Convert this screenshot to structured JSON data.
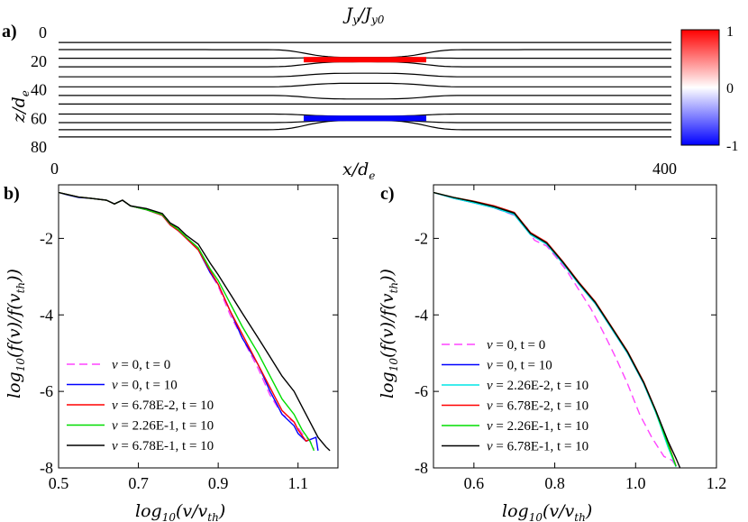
{
  "chart_data": [
    {
      "id": "a",
      "panel_label": "a)",
      "type": "heatmap",
      "title": "J_y/J_y0",
      "title_display": [
        "J",
        "y",
        "/J",
        "y0"
      ],
      "xlabel_display": [
        "x/d",
        "e"
      ],
      "ylabel_display": [
        "z/d",
        "e"
      ],
      "xlim": [
        0,
        400
      ],
      "ylim": [
        0,
        80
      ],
      "y_reversed": true,
      "x_ticks": [
        "0",
        "400"
      ],
      "y_ticks": [
        "0",
        "20",
        "40",
        "60",
        "80"
      ],
      "colorbar": {
        "range": [
          -1,
          1
        ],
        "ticks": [
          "1",
          "0",
          "-1"
        ],
        "colors": [
          "#ff0000",
          "#ffffff",
          "#0000ff"
        ]
      },
      "current_sheets": [
        {
          "sign": 1,
          "z": 19,
          "x_start": 160,
          "x_end": 240
        },
        {
          "sign": -1,
          "z": 60,
          "x_start": 160,
          "x_end": 240
        }
      ],
      "field_lines_z": [
        7,
        12,
        18,
        24,
        31,
        38,
        44,
        50,
        57,
        63,
        68,
        73
      ],
      "field_line_bend_center": 200
    },
    {
      "id": "b",
      "panel_label": "b)",
      "type": "line",
      "xlabel_display": [
        "log",
        "10",
        "(v/v",
        "th",
        ")"
      ],
      "ylabel_display": [
        "log",
        "10",
        "(f(v)/f(v",
        "th",
        "))"
      ],
      "xlim": [
        0.5,
        1.2
      ],
      "ylim": [
        -8,
        -0.6
      ],
      "x_ticks": [
        0.5,
        0.7,
        0.9,
        1.1
      ],
      "x_tick_labels": [
        "0.5",
        "0.7",
        "0.9",
        "1.1"
      ],
      "y_ticks": [
        -8,
        -6,
        -4,
        -2
      ],
      "y_tick_labels": [
        "-8",
        "-6",
        "-4",
        "-2"
      ],
      "legend": {
        "position": "bottom-left",
        "entries": [
          {
            "nu": "0",
            "t": "0",
            "color": "#ff44ff",
            "dashed": true
          },
          {
            "nu": "0",
            "t": "10",
            "color": "#0000ff",
            "dashed": false
          },
          {
            "nu": "6.78E-2",
            "t": "10",
            "color": "#ff0000",
            "dashed": false
          },
          {
            "nu": "2.26E-1",
            "t": "10",
            "color": "#00dd00",
            "dashed": false
          },
          {
            "nu": "6.78E-1",
            "t": "10",
            "color": "#000000",
            "dashed": false
          }
        ]
      },
      "series": [
        {
          "name": "nu=0, t=0",
          "color": "#ff44ff",
          "dashed": true,
          "x": [
            0.5,
            0.52,
            0.55,
            0.58,
            0.62,
            0.64,
            0.66,
            0.68,
            0.72,
            0.76,
            0.78,
            0.8,
            0.82,
            0.85,
            0.88,
            0.9,
            0.93,
            0.96,
            1.0,
            1.03,
            1.06,
            1.09,
            1.11,
            1.13,
            1.14
          ],
          "y": [
            -0.8,
            -0.85,
            -0.92,
            -0.95,
            -1.0,
            -1.1,
            -1.0,
            -1.15,
            -1.25,
            -1.4,
            -1.65,
            -1.8,
            -2.0,
            -2.3,
            -2.9,
            -3.25,
            -4.0,
            -4.6,
            -5.4,
            -6.1,
            -6.6,
            -6.8,
            -7.1,
            -7.3,
            -7.5
          ]
        },
        {
          "name": "nu=0, t=10",
          "color": "#0000ff",
          "dashed": false,
          "x": [
            0.5,
            0.52,
            0.55,
            0.58,
            0.62,
            0.64,
            0.66,
            0.68,
            0.72,
            0.76,
            0.78,
            0.8,
            0.82,
            0.85,
            0.88,
            0.9,
            0.93,
            0.96,
            1.0,
            1.03,
            1.06,
            1.09,
            1.1,
            1.12,
            1.145,
            1.15
          ],
          "y": [
            -0.8,
            -0.86,
            -0.93,
            -0.95,
            -1.0,
            -1.1,
            -1.0,
            -1.15,
            -1.25,
            -1.4,
            -1.65,
            -1.8,
            -2.0,
            -2.3,
            -2.9,
            -3.2,
            -3.9,
            -4.6,
            -5.3,
            -6.0,
            -6.6,
            -6.9,
            -7.1,
            -7.3,
            -7.2,
            -7.55
          ]
        },
        {
          "name": "nu=6.78E-2, t=10",
          "color": "#ff0000",
          "dashed": false,
          "x": [
            0.5,
            0.52,
            0.55,
            0.58,
            0.62,
            0.64,
            0.66,
            0.68,
            0.72,
            0.76,
            0.78,
            0.8,
            0.82,
            0.85,
            0.88,
            0.9,
            0.93,
            0.96,
            1.0,
            1.03,
            1.06,
            1.09,
            1.1,
            1.12,
            1.13
          ],
          "y": [
            -0.8,
            -0.85,
            -0.92,
            -0.95,
            -1.0,
            -1.1,
            -1.0,
            -1.15,
            -1.25,
            -1.4,
            -1.65,
            -1.8,
            -2.0,
            -2.3,
            -2.85,
            -3.2,
            -3.9,
            -4.5,
            -5.3,
            -5.9,
            -6.5,
            -6.8,
            -7.0,
            -7.3,
            -7.25
          ]
        },
        {
          "name": "nu=2.26E-1, t=10",
          "color": "#00dd00",
          "dashed": false,
          "x": [
            0.5,
            0.52,
            0.55,
            0.58,
            0.62,
            0.64,
            0.66,
            0.68,
            0.72,
            0.76,
            0.78,
            0.8,
            0.82,
            0.85,
            0.88,
            0.9,
            0.93,
            0.96,
            1.0,
            1.03,
            1.06,
            1.09,
            1.11,
            1.13,
            1.14
          ],
          "y": [
            -0.8,
            -0.85,
            -0.92,
            -0.95,
            -1.0,
            -1.1,
            -1.0,
            -1.15,
            -1.25,
            -1.38,
            -1.62,
            -1.77,
            -1.97,
            -2.25,
            -2.8,
            -3.1,
            -3.7,
            -4.3,
            -5.0,
            -5.6,
            -6.2,
            -6.6,
            -7.0,
            -7.3,
            -7.55
          ]
        },
        {
          "name": "nu=6.78E-1, t=10",
          "color": "#000000",
          "dashed": false,
          "x": [
            0.5,
            0.52,
            0.55,
            0.58,
            0.62,
            0.64,
            0.66,
            0.68,
            0.72,
            0.76,
            0.78,
            0.8,
            0.82,
            0.85,
            0.88,
            0.9,
            0.93,
            0.96,
            1.0,
            1.03,
            1.06,
            1.09,
            1.11,
            1.13,
            1.15,
            1.17,
            1.18
          ],
          "y": [
            -0.8,
            -0.85,
            -0.92,
            -0.95,
            -1.0,
            -1.1,
            -1.0,
            -1.15,
            -1.22,
            -1.35,
            -1.6,
            -1.72,
            -1.92,
            -2.15,
            -2.65,
            -2.95,
            -3.45,
            -3.95,
            -4.6,
            -5.1,
            -5.6,
            -6.0,
            -6.4,
            -6.8,
            -7.2,
            -7.45,
            -7.55
          ]
        }
      ]
    },
    {
      "id": "c",
      "panel_label": "c)",
      "type": "line",
      "xlabel_display": [
        "log",
        "10",
        "(v/v",
        "th",
        ")"
      ],
      "ylabel_display": [
        "log",
        "10",
        "(f(v)/f(v",
        "th",
        "))"
      ],
      "xlim": [
        0.5,
        1.2
      ],
      "ylim": [
        -8,
        -0.6
      ],
      "x_ticks": [
        0.6,
        0.8,
        1.0,
        1.2
      ],
      "x_tick_labels": [
        "0.6",
        "0.8",
        "1.0",
        "1.2"
      ],
      "y_ticks": [
        -8,
        -6,
        -4,
        -2
      ],
      "y_tick_labels": [
        "-8",
        "-6",
        "-4",
        "-2"
      ],
      "legend": {
        "position": "bottom-left",
        "entries": [
          {
            "nu": "0",
            "t": "0",
            "color": "#ff44ff",
            "dashed": true
          },
          {
            "nu": "0",
            "t": "10",
            "color": "#0000ff",
            "dashed": false
          },
          {
            "nu": "2.26E-2",
            "t": "10",
            "color": "#00e5e5",
            "dashed": false
          },
          {
            "nu": "6.78E-2",
            "t": "10",
            "color": "#ff0000",
            "dashed": false
          },
          {
            "nu": "2.26E-1",
            "t": "10",
            "color": "#00dd00",
            "dashed": false
          },
          {
            "nu": "6.78E-1",
            "t": "10",
            "color": "#000000",
            "dashed": false
          }
        ]
      },
      "series": [
        {
          "name": "nu=0, t=0",
          "color": "#ff44ff",
          "dashed": true,
          "x": [
            0.5,
            0.55,
            0.6,
            0.65,
            0.7,
            0.73,
            0.75,
            0.78,
            0.8,
            0.83,
            0.86,
            0.89,
            0.92,
            0.95,
            0.98,
            1.01,
            1.04,
            1.07,
            1.09,
            1.1
          ],
          "y": [
            -0.8,
            -0.93,
            -1.05,
            -1.2,
            -1.4,
            -1.7,
            -2.05,
            -2.2,
            -2.45,
            -2.85,
            -3.35,
            -3.85,
            -4.45,
            -5.1,
            -5.8,
            -6.6,
            -7.2,
            -7.7,
            -7.8,
            -7.95
          ]
        },
        {
          "name": "nu=0, t=10",
          "color": "#0000ff",
          "dashed": false,
          "x": [
            0.5,
            0.55,
            0.6,
            0.65,
            0.7,
            0.74,
            0.78,
            0.82,
            0.86,
            0.9,
            0.94,
            0.98,
            1.02,
            1.05,
            1.08,
            1.1
          ],
          "y": [
            -0.8,
            -0.95,
            -1.07,
            -1.2,
            -1.38,
            -1.9,
            -2.15,
            -2.65,
            -3.2,
            -3.7,
            -4.35,
            -5.0,
            -5.8,
            -6.55,
            -7.4,
            -7.95
          ]
        },
        {
          "name": "nu=2.26E-2, t=10",
          "color": "#00e5e5",
          "dashed": false,
          "x": [
            0.5,
            0.55,
            0.6,
            0.65,
            0.7,
            0.74,
            0.78,
            0.82,
            0.86,
            0.9,
            0.94,
            0.98,
            1.02,
            1.05,
            1.08,
            1.1
          ],
          "y": [
            -0.8,
            -0.95,
            -1.07,
            -1.2,
            -1.38,
            -1.9,
            -2.15,
            -2.65,
            -3.2,
            -3.7,
            -4.35,
            -5.0,
            -5.8,
            -6.55,
            -7.45,
            -7.97
          ]
        },
        {
          "name": "nu=6.78E-2, t=10",
          "color": "#ff0000",
          "dashed": false,
          "x": [
            0.5,
            0.55,
            0.6,
            0.65,
            0.7,
            0.74,
            0.78,
            0.82,
            0.86,
            0.9,
            0.94,
            0.98,
            1.02,
            1.05,
            1.08,
            1.1
          ],
          "y": [
            -0.8,
            -0.93,
            -1.03,
            -1.15,
            -1.32,
            -1.85,
            -2.1,
            -2.6,
            -3.15,
            -3.65,
            -4.3,
            -4.95,
            -5.75,
            -6.5,
            -7.35,
            -7.95
          ]
        },
        {
          "name": "nu=2.26E-1, t=10",
          "color": "#00dd00",
          "dashed": false,
          "x": [
            0.5,
            0.55,
            0.6,
            0.65,
            0.7,
            0.74,
            0.78,
            0.82,
            0.86,
            0.9,
            0.94,
            0.98,
            1.02,
            1.05,
            1.08,
            1.1
          ],
          "y": [
            -0.8,
            -0.93,
            -1.04,
            -1.17,
            -1.34,
            -1.87,
            -2.12,
            -2.62,
            -3.17,
            -3.67,
            -4.32,
            -4.97,
            -5.77,
            -6.52,
            -7.38,
            -7.96
          ]
        },
        {
          "name": "nu=6.78E-1, t=10",
          "color": "#000000",
          "dashed": false,
          "x": [
            0.5,
            0.55,
            0.6,
            0.65,
            0.7,
            0.74,
            0.78,
            0.82,
            0.86,
            0.9,
            0.94,
            0.98,
            1.02,
            1.05,
            1.08,
            1.1,
            1.11
          ],
          "y": [
            -0.8,
            -0.93,
            -1.04,
            -1.17,
            -1.34,
            -1.87,
            -2.12,
            -2.62,
            -3.17,
            -3.67,
            -4.32,
            -4.97,
            -5.77,
            -6.5,
            -7.3,
            -7.75,
            -8.0
          ]
        }
      ]
    }
  ]
}
